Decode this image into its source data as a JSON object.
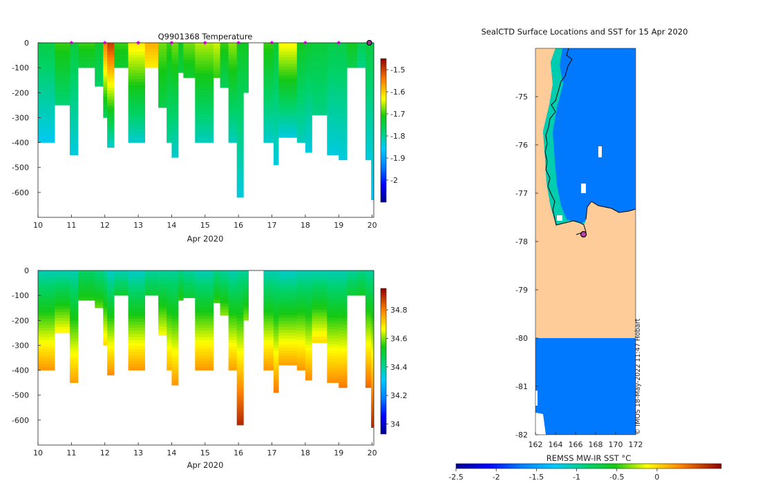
{
  "chart_data": [
    {
      "type": "heatmap",
      "name": "temperature-profiles",
      "title": "Q9901368  Temperature",
      "xlabel": "Apr 2020",
      "ylabel": "",
      "x_ticks": [
        10,
        11,
        12,
        13,
        14,
        15,
        16,
        17,
        18,
        19,
        20
      ],
      "y_ticks": [
        0,
        -100,
        -200,
        -300,
        -400,
        -500,
        -600
      ],
      "xlim": [
        10,
        20.05
      ],
      "ylim": [
        -700,
        0
      ],
      "colorbar": {
        "range": [
          -2.1,
          -1.45
        ],
        "ticks": [
          -1.5,
          -1.6,
          -1.7,
          -1.8,
          -1.9,
          -2
        ]
      },
      "profiles": [
        {
          "x0": 10.0,
          "x1": 10.5,
          "depth": 400,
          "top": -1.75,
          "bottom": -1.85
        },
        {
          "x0": 10.5,
          "x1": 10.95,
          "depth": 250,
          "top": -1.7,
          "bottom": -1.78
        },
        {
          "x0": 10.95,
          "x1": 11.2,
          "depth": 450,
          "top": -1.74,
          "bottom": -1.84
        },
        {
          "x0": 11.2,
          "x1": 11.7,
          "depth": 100,
          "top": -1.7,
          "bottom": -1.74
        },
        {
          "x0": 11.7,
          "x1": 11.95,
          "depth": 175,
          "top": -1.73,
          "bottom": -1.77
        },
        {
          "x0": 11.95,
          "x1": 12.07,
          "depth": 300,
          "top": -1.55,
          "bottom": -1.76
        },
        {
          "x0": 12.07,
          "x1": 12.28,
          "depth": 420,
          "top": -1.5,
          "bottom": -1.83
        },
        {
          "x0": 12.28,
          "x1": 12.7,
          "depth": 100,
          "top": -1.7,
          "bottom": -1.73
        },
        {
          "x0": 12.7,
          "x1": 13.2,
          "depth": 400,
          "top": -1.62,
          "bottom": -1.83
        },
        {
          "x0": 13.2,
          "x1": 13.6,
          "depth": 100,
          "top": -1.58,
          "bottom": -1.62
        },
        {
          "x0": 13.6,
          "x1": 13.85,
          "depth": 260,
          "top": -1.68,
          "bottom": -1.75
        },
        {
          "x0": 13.85,
          "x1": 14.0,
          "depth": 400,
          "top": -1.7,
          "bottom": -1.8
        },
        {
          "x0": 14.0,
          "x1": 14.2,
          "depth": 460,
          "top": -1.68,
          "bottom": -1.83
        },
        {
          "x0": 14.2,
          "x1": 14.35,
          "depth": 120,
          "top": -1.72,
          "bottom": -1.74
        },
        {
          "x0": 14.35,
          "x1": 14.7,
          "depth": 140,
          "top": -1.68,
          "bottom": -1.73
        },
        {
          "x0": 14.7,
          "x1": 15.25,
          "depth": 400,
          "top": -1.66,
          "bottom": -1.82
        },
        {
          "x0": 15.25,
          "x1": 15.45,
          "depth": 140,
          "top": -1.65,
          "bottom": -1.7
        },
        {
          "x0": 15.45,
          "x1": 15.7,
          "depth": 180,
          "top": -1.7,
          "bottom": -1.76
        },
        {
          "x0": 15.7,
          "x1": 15.95,
          "depth": 400,
          "top": -1.67,
          "bottom": -1.82
        },
        {
          "x0": 15.95,
          "x1": 16.15,
          "depth": 620,
          "top": -1.72,
          "bottom": -1.84
        },
        {
          "x0": 16.15,
          "x1": 16.3,
          "depth": 200,
          "top": -1.72,
          "bottom": -1.76
        },
        {
          "x0": 16.75,
          "x1": 17.05,
          "depth": 400,
          "top": -1.7,
          "bottom": -1.83
        },
        {
          "x0": 17.05,
          "x1": 17.2,
          "depth": 490,
          "top": -1.73,
          "bottom": -1.84
        },
        {
          "x0": 17.2,
          "x1": 17.75,
          "depth": 380,
          "top": -1.63,
          "bottom": -1.84
        },
        {
          "x0": 17.75,
          "x1": 18.0,
          "depth": 400,
          "top": -1.72,
          "bottom": -1.82
        },
        {
          "x0": 18.0,
          "x1": 18.2,
          "depth": 440,
          "top": -1.73,
          "bottom": -1.84
        },
        {
          "x0": 18.2,
          "x1": 18.65,
          "depth": 290,
          "top": -1.74,
          "bottom": -1.79
        },
        {
          "x0": 18.65,
          "x1": 19.0,
          "depth": 450,
          "top": -1.75,
          "bottom": -1.84
        },
        {
          "x0": 19.0,
          "x1": 19.25,
          "depth": 470,
          "top": -1.75,
          "bottom": -1.84
        },
        {
          "x0": 19.25,
          "x1": 19.55,
          "depth": 100,
          "top": -1.72,
          "bottom": -1.75
        },
        {
          "x0": 19.55,
          "x1": 19.8,
          "depth": 100,
          "top": -1.76,
          "bottom": -1.79
        },
        {
          "x0": 19.8,
          "x1": 19.97,
          "depth": 470,
          "top": -1.74,
          "bottom": -1.84
        },
        {
          "x0": 19.97,
          "x1": 20.05,
          "depth": 630,
          "top": -1.75,
          "bottom": -1.86
        }
      ],
      "surface_markers": [
        11,
        12,
        13,
        14,
        15,
        16,
        17,
        18,
        19
      ],
      "latest_marker": 20
    },
    {
      "type": "heatmap",
      "name": "salinity-profiles",
      "title": "",
      "xlabel": "Apr 2020",
      "ylabel": "",
      "x_ticks": [
        10,
        11,
        12,
        13,
        14,
        15,
        16,
        17,
        18,
        19,
        20
      ],
      "y_ticks": [
        0,
        -100,
        -200,
        -300,
        -400,
        -500,
        -600
      ],
      "xlim": [
        10,
        20.05
      ],
      "ylim": [
        -700,
        0
      ],
      "colorbar": {
        "range": [
          33.93,
          34.95
        ],
        "ticks": [
          34.8,
          34.6,
          34.4,
          34.2,
          34
        ]
      },
      "profiles": [
        {
          "x0": 10.0,
          "x1": 10.5,
          "depth": 400,
          "top": 34.38,
          "bottom": 34.77
        },
        {
          "x0": 10.5,
          "x1": 10.95,
          "depth": 250,
          "top": 34.38,
          "bottom": 34.67
        },
        {
          "x0": 10.95,
          "x1": 11.2,
          "depth": 450,
          "top": 34.38,
          "bottom": 34.76
        },
        {
          "x0": 11.2,
          "x1": 11.7,
          "depth": 120,
          "top": 34.45,
          "bottom": 34.55
        },
        {
          "x0": 11.7,
          "x1": 11.95,
          "depth": 150,
          "top": 34.42,
          "bottom": 34.58
        },
        {
          "x0": 11.95,
          "x1": 12.07,
          "depth": 300,
          "top": 34.4,
          "bottom": 34.7
        },
        {
          "x0": 12.07,
          "x1": 12.28,
          "depth": 420,
          "top": 34.36,
          "bottom": 34.78
        },
        {
          "x0": 12.28,
          "x1": 12.7,
          "depth": 100,
          "top": 34.38,
          "bottom": 34.5
        },
        {
          "x0": 12.7,
          "x1": 13.2,
          "depth": 400,
          "top": 34.36,
          "bottom": 34.77
        },
        {
          "x0": 13.2,
          "x1": 13.6,
          "depth": 100,
          "top": 34.4,
          "bottom": 34.5
        },
        {
          "x0": 13.6,
          "x1": 13.85,
          "depth": 260,
          "top": 34.4,
          "bottom": 34.66
        },
        {
          "x0": 13.85,
          "x1": 14.0,
          "depth": 400,
          "top": 34.4,
          "bottom": 34.74
        },
        {
          "x0": 14.0,
          "x1": 14.2,
          "depth": 460,
          "top": 34.4,
          "bottom": 34.77
        },
        {
          "x0": 14.2,
          "x1": 14.35,
          "depth": 120,
          "top": 34.42,
          "bottom": 34.55
        },
        {
          "x0": 14.35,
          "x1": 14.7,
          "depth": 110,
          "top": 34.4,
          "bottom": 34.5
        },
        {
          "x0": 14.7,
          "x1": 15.25,
          "depth": 400,
          "top": 34.38,
          "bottom": 34.77
        },
        {
          "x0": 15.25,
          "x1": 15.45,
          "depth": 130,
          "top": 34.42,
          "bottom": 34.56
        },
        {
          "x0": 15.45,
          "x1": 15.7,
          "depth": 180,
          "top": 34.4,
          "bottom": 34.6
        },
        {
          "x0": 15.7,
          "x1": 15.95,
          "depth": 400,
          "top": 34.38,
          "bottom": 34.76
        },
        {
          "x0": 15.95,
          "x1": 16.15,
          "depth": 620,
          "top": 34.4,
          "bottom": 34.9
        },
        {
          "x0": 16.15,
          "x1": 16.3,
          "depth": 200,
          "top": 34.4,
          "bottom": 34.6
        },
        {
          "x0": 16.75,
          "x1": 17.05,
          "depth": 400,
          "top": 34.38,
          "bottom": 34.77
        },
        {
          "x0": 17.05,
          "x1": 17.2,
          "depth": 490,
          "top": 34.38,
          "bottom": 34.8
        },
        {
          "x0": 17.2,
          "x1": 17.75,
          "depth": 380,
          "top": 34.36,
          "bottom": 34.76
        },
        {
          "x0": 17.75,
          "x1": 18.0,
          "depth": 400,
          "top": 34.38,
          "bottom": 34.77
        },
        {
          "x0": 18.0,
          "x1": 18.2,
          "depth": 440,
          "top": 34.38,
          "bottom": 34.78
        },
        {
          "x0": 18.2,
          "x1": 18.65,
          "depth": 290,
          "top": 34.38,
          "bottom": 34.7
        },
        {
          "x0": 18.65,
          "x1": 19.0,
          "depth": 450,
          "top": 34.38,
          "bottom": 34.78
        },
        {
          "x0": 19.0,
          "x1": 19.25,
          "depth": 470,
          "top": 34.38,
          "bottom": 34.8
        },
        {
          "x0": 19.25,
          "x1": 19.55,
          "depth": 100,
          "top": 34.4,
          "bottom": 34.5
        },
        {
          "x0": 19.55,
          "x1": 19.8,
          "depth": 100,
          "top": 34.42,
          "bottom": 34.52
        },
        {
          "x0": 19.8,
          "x1": 19.97,
          "depth": 470,
          "top": 34.4,
          "bottom": 34.82
        },
        {
          "x0": 19.97,
          "x1": 20.05,
          "depth": 630,
          "top": 34.4,
          "bottom": 34.9
        }
      ]
    },
    {
      "type": "heatmap",
      "name": "sst-map",
      "title": "SealCTD Surface Locations and SST for 15 Apr 2020",
      "xlabel": "",
      "ylabel": "",
      "x_ticks": [
        162,
        164,
        166,
        168,
        170,
        172
      ],
      "y_ticks": [
        -75,
        -76,
        -77,
        -78,
        -79,
        -80,
        -81,
        -82
      ],
      "xlim": [
        162,
        172
      ],
      "ylim": [
        -82,
        -74
      ],
      "colorbar": {
        "label": "REMSS MW-IR SST °C",
        "range": [
          -2.5,
          0.8
        ],
        "ticks": [
          -2.5,
          -2,
          -1.5,
          -1,
          -0.5,
          0
        ]
      },
      "sea_sst": -1.7,
      "coast_band_sst": -1.05,
      "seal_location": {
        "lon": 166.8,
        "lat": -77.85
      },
      "credit": "© IMOS 18-May-2022 11:47 Hobart"
    }
  ],
  "colors": {
    "land": "#fdcc98",
    "coastline": "#000000",
    "marker": "#ff00ff",
    "latest_marker": "#c040b0"
  }
}
